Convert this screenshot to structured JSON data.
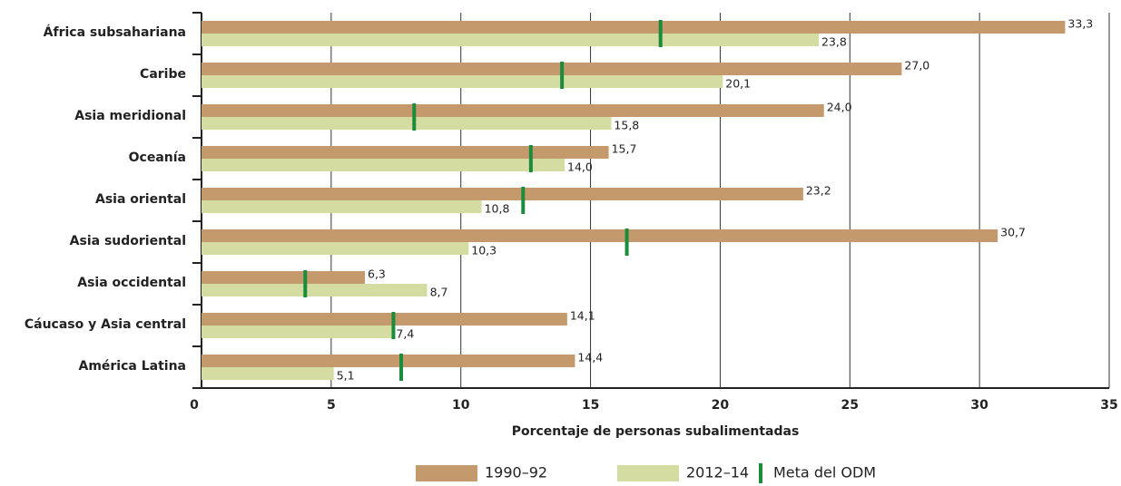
{
  "chart_data": {
    "type": "bar",
    "orientation": "horizontal",
    "xlabel": "Porcentaje de personas subalimentadas",
    "categories": [
      "África subsahariana",
      "Caribe",
      "Asia meridional",
      "Oceanía",
      "Asia oriental",
      "Asia sudoriental",
      "Asia occidental",
      "Cáucaso y Asia central",
      "América Latina"
    ],
    "series": [
      {
        "name": "1990–92",
        "color": "#c49a6c",
        "values": [
          33.3,
          27.0,
          24.0,
          15.7,
          23.2,
          30.7,
          6.3,
          14.1,
          14.4
        ],
        "value_labels": [
          "33,3",
          "27,0",
          "24,0",
          "15,7",
          "23,2",
          "30,7",
          "6,3",
          "14,1",
          "14,4"
        ]
      },
      {
        "name": "2012–14",
        "color": "#d5dca1",
        "values": [
          23.8,
          20.1,
          15.8,
          14.0,
          10.8,
          10.3,
          8.7,
          7.4,
          5.1
        ],
        "value_labels": [
          "23,8",
          "20,1",
          "15,8",
          "14,0",
          "10,8",
          "10,3",
          "8,7",
          "7,4",
          "5,1"
        ]
      }
    ],
    "markers": {
      "name": "Meta del ODM",
      "color": "#1a8c3c",
      "values": [
        17.7,
        13.9,
        8.2,
        12.7,
        12.4,
        16.4,
        4.0,
        7.4,
        7.7
      ]
    },
    "xlim": [
      0,
      35
    ],
    "xticks": [
      0,
      5,
      10,
      15,
      20,
      25,
      30,
      35
    ],
    "grid": true,
    "legend": "bottom"
  }
}
